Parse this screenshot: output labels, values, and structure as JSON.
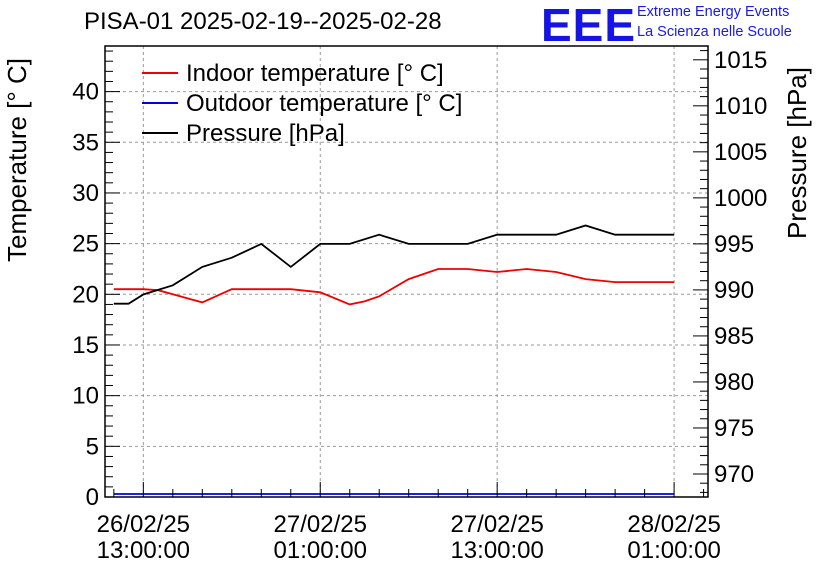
{
  "header": {
    "title": "PISA-01 2025-02-19--2025-02-28",
    "logo_text": "EEE",
    "logo_line1": "Extreme Energy Events",
    "logo_line2": "La Scienza nelle Scuole"
  },
  "chart_data": {
    "type": "line",
    "title": "PISA-01 2025-02-19--2025-02-28",
    "ylabel": "Temperature [° C]",
    "y2label": "Pressure [hPa]",
    "ylim": [
      0,
      44.5
    ],
    "y2lim": [
      967.5,
      1016.5
    ],
    "xlim": [
      -2.6,
      38.3
    ],
    "yticks": [
      0,
      5,
      10,
      15,
      20,
      25,
      30,
      35,
      40
    ],
    "y2ticks": [
      970,
      975,
      980,
      985,
      990,
      995,
      1000,
      1005,
      1010,
      1015
    ],
    "xunit": "hours since 26/02/25 13:00:00",
    "xticks": [
      {
        "x": 0,
        "l1": "26/02/25",
        "l2": "13:00:00"
      },
      {
        "x": 12,
        "l1": "27/02/25",
        "l2": "01:00:00"
      },
      {
        "x": 24,
        "l1": "27/02/25",
        "l2": "13:00:00"
      },
      {
        "x": 36,
        "l1": "28/02/25",
        "l2": "01:00:00"
      }
    ],
    "grid": true,
    "legend": "top-left",
    "series": [
      {
        "name": "Indoor temperature [° C]",
        "axis": "left",
        "color": "#ee0000",
        "x": [
          -2,
          -1.5,
          0,
          1,
          2,
          3,
          4,
          6,
          8,
          10,
          12,
          14,
          15,
          16,
          18,
          20,
          22,
          24,
          26,
          28,
          30,
          32,
          34,
          36
        ],
        "values": [
          20.5,
          20.5,
          20.5,
          20.4,
          20,
          19.6,
          19.2,
          20.5,
          20.5,
          20.5,
          20.2,
          19,
          19.3,
          19.8,
          21.5,
          22.5,
          22.5,
          22.2,
          22.5,
          22.2,
          21.5,
          21.2,
          21.2,
          21.2
        ]
      },
      {
        "name": "Outdoor temperature [° C]",
        "axis": "left",
        "color": "#0000dd",
        "x": [
          -2,
          36
        ],
        "values": [
          0.3,
          0.3
        ]
      },
      {
        "name": "Pressure [hPa]",
        "axis": "right",
        "color": "#000000",
        "x": [
          -2,
          -1,
          0,
          1,
          2,
          4,
          6,
          8,
          10,
          12,
          14,
          16,
          18,
          20,
          22,
          24,
          26,
          28,
          30,
          32,
          34,
          36
        ],
        "values": [
          988.5,
          988.5,
          989.5,
          990,
          990.5,
          992.5,
          993.5,
          995,
          992.5,
          995,
          995,
          996,
          995,
          995,
          995,
          996,
          996,
          996,
          997,
          996,
          996,
          996
        ]
      }
    ]
  }
}
